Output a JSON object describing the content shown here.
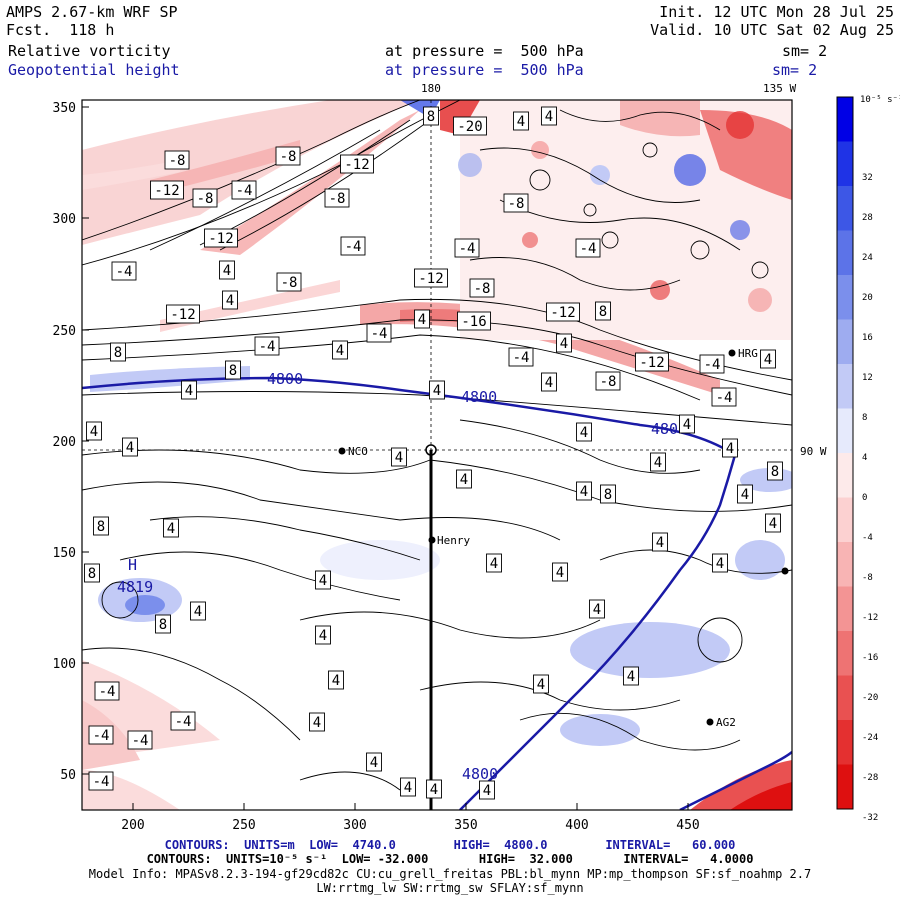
{
  "header": {
    "model": "AMPS 2.67-km WRF SP",
    "forecast": "Fcst.  118 h",
    "init": "Init. 12 UTC Mon 28 Jul 25",
    "valid": "Valid. 10 UTC Sat 02 Aug 25",
    "field1_name": "Relative vorticity",
    "field1_level": "at pressure =  500 hPa",
    "field1_sm": "sm= 2",
    "field2_name": "Geopotential height",
    "field2_level": "at pressure =  500 hPa",
    "field2_sm": "sm= 2",
    "lon_label_180": "180",
    "lon_label_135": "135 W",
    "lat_label_90": "90 W"
  },
  "axes": {
    "x_ticks": [
      "200",
      "250",
      "300",
      "350",
      "400",
      "450"
    ],
    "y_ticks": [
      "350",
      "300",
      "250",
      "200",
      "150",
      "100",
      "50"
    ]
  },
  "colorbar": {
    "unit": "10⁻⁵ s⁻¹",
    "labels": [
      "32",
      "28",
      "24",
      "20",
      "16",
      "12",
      "8",
      "4",
      "0",
      "-4",
      "-8",
      "-12",
      "-16",
      "-20",
      "-24",
      "-28",
      "-32"
    ],
    "colors": [
      "#0000e6",
      "#1f33e6",
      "#3d57e6",
      "#5c73e8",
      "#7b8fec",
      "#9eacf0",
      "#c2caf6",
      "#e6eafc",
      "#fdeaea",
      "#fcd1d1",
      "#f8b4b4",
      "#f39494",
      "#ee7373",
      "#e95151",
      "#e43030",
      "#de1010"
    ]
  },
  "stations": {
    "nco": "NCO",
    "henry": "Henry",
    "hrg": "HRG",
    "ag2": "AG2"
  },
  "contour_labels": {
    "height_4800": "4800",
    "high_marker": "H",
    "high_value": "4819"
  },
  "vort_labels": [
    "8",
    "-20",
    "4",
    "4",
    "-8",
    "-8",
    "-12",
    "-12",
    "-8",
    "-4",
    "-8",
    "-8",
    "-12",
    "-4",
    "-4",
    "-4",
    "4",
    "-8",
    "-12",
    "-8",
    "4",
    "-4",
    "-12",
    "-16",
    "4",
    "8",
    "-12",
    "4",
    "-4",
    "-4",
    "8",
    "8",
    "4",
    "-4",
    "-12",
    "-4",
    "4",
    "4",
    "-8",
    "-4",
    "4",
    "4",
    "4",
    "4",
    "4",
    "4",
    "4",
    "4",
    "4",
    "8",
    "4",
    "8",
    "4",
    "8",
    "4",
    "4",
    "4",
    "4",
    "8",
    "4",
    "4",
    "4",
    "4",
    "4",
    "8",
    "-4",
    "-4",
    "-4",
    "-4",
    "-4",
    "4",
    "4",
    "4",
    "4",
    "4",
    "4",
    "4",
    "4",
    "4",
    "4"
  ],
  "footer": {
    "line1": "CONTOURS:  UNITS=m  LOW=  4740.0        HIGH=  4800.0        INTERVAL=   60.000",
    "line2": "CONTOURS:  UNITS=10⁻⁵ s⁻¹  LOW= -32.000       HIGH=  32.000       INTERVAL=   4.0000",
    "line3": "Model Info: MPASv8.2.3-194-gf29cd82c CU:cu_grell_freitas PBL:bl_mynn MP:mp_thompson SF:sf_noahmp 2.7",
    "line4": "LW:rrtmg_lw SW:rrtmg_sw SFLAY:sf_mynn"
  }
}
